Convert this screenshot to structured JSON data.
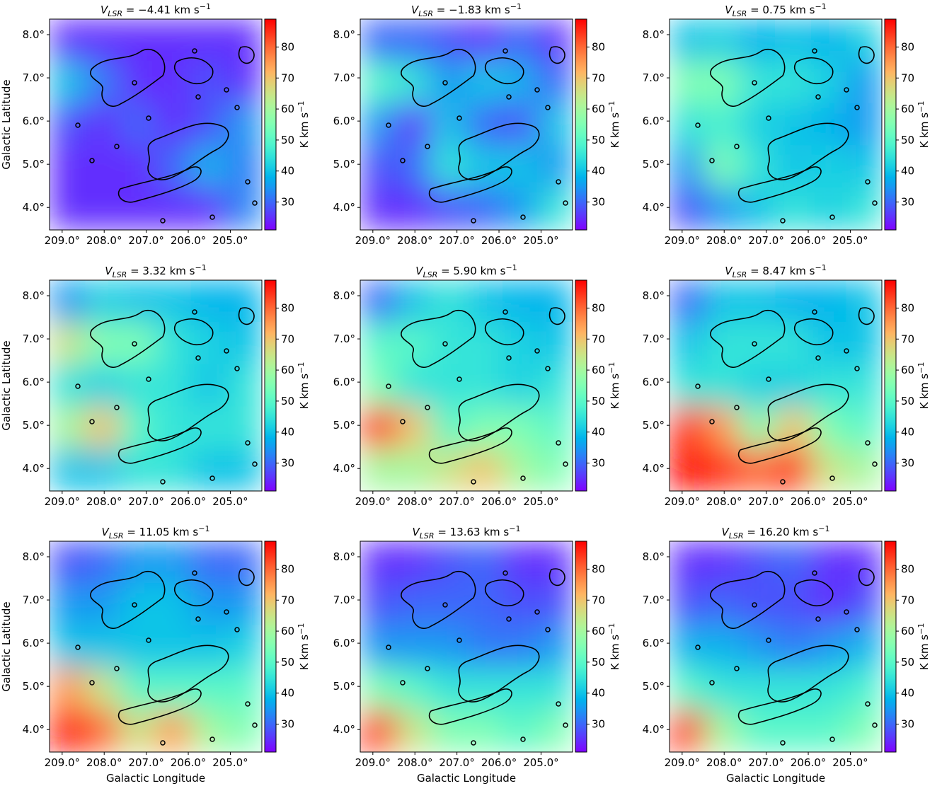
{
  "chart_data": [
    {
      "type": "heatmap",
      "title": [
        "V",
        "LSR",
        " = −4.41 km s",
        "−1"
      ],
      "ylabel": "Galactic Latitude",
      "colormap": "rainbow",
      "colorbar_label": [
        "K km s",
        "−1"
      ],
      "z": [
        [
          25,
          25,
          25,
          25,
          25,
          25
        ],
        [
          40,
          32,
          25,
          25,
          28,
          25
        ],
        [
          28,
          25,
          30,
          25,
          28,
          35
        ],
        [
          25,
          25,
          25,
          30,
          38,
          32
        ],
        [
          25,
          25,
          25,
          25,
          25,
          33
        ]
      ],
      "xlim": [
        209.3,
        204.25
      ],
      "ylim": [
        3.48,
        8.36
      ],
      "clim": [
        21,
        89
      ],
      "xticks": [
        {
          "value": 209,
          "label": "209.0°"
        },
        {
          "value": 208,
          "label": "208.0°"
        },
        {
          "value": 207,
          "label": "207.0°"
        },
        {
          "value": 206,
          "label": "206.0°"
        },
        {
          "value": 205,
          "label": "205.0°"
        }
      ],
      "yticks": [
        {
          "value": 4,
          "label": "4.0°"
        },
        {
          "value": 5,
          "label": "5.0°"
        },
        {
          "value": 6,
          "label": "6.0°"
        },
        {
          "value": 7,
          "label": "7.0°"
        },
        {
          "value": 8,
          "label": "8.0°"
        }
      ],
      "cticks": [
        30,
        40,
        50,
        60,
        70,
        80
      ]
    },
    {
      "type": "heatmap",
      "title": [
        "V",
        "LSR",
        " = −1.83 km s",
        "−1"
      ],
      "colormap": "rainbow",
      "colorbar_label": [
        "K km s",
        "−1"
      ],
      "z": [
        [
          30,
          30,
          28,
          25,
          30,
          25
        ],
        [
          50,
          45,
          35,
          40,
          38,
          30
        ],
        [
          35,
          25,
          40,
          30,
          28,
          40
        ],
        [
          28,
          30,
          45,
          40,
          40,
          35
        ],
        [
          25,
          25,
          28,
          30,
          35,
          45
        ]
      ],
      "xlim": [
        209.3,
        204.25
      ],
      "ylim": [
        3.48,
        8.36
      ],
      "clim": [
        21,
        89
      ],
      "xticks": [
        {
          "value": 209,
          "label": "209.0°"
        },
        {
          "value": 208,
          "label": "208.0°"
        },
        {
          "value": 207,
          "label": "207.0°"
        },
        {
          "value": 206,
          "label": "206.0°"
        },
        {
          "value": 205,
          "label": "205.0°"
        }
      ],
      "yticks": [
        {
          "value": 4,
          "label": "4.0°"
        },
        {
          "value": 5,
          "label": "5.0°"
        },
        {
          "value": 6,
          "label": "6.0°"
        },
        {
          "value": 7,
          "label": "7.0°"
        },
        {
          "value": 8,
          "label": "8.0°"
        }
      ],
      "cticks": [
        30,
        40,
        50,
        60,
        70,
        80
      ]
    },
    {
      "type": "heatmap",
      "title": [
        "V",
        "LSR",
        " = 0.75 km s",
        "−1"
      ],
      "colormap": "rainbow",
      "colorbar_label": [
        "K km s",
        "−1"
      ],
      "z": [
        [
          40,
          42,
          38,
          40,
          38,
          42
        ],
        [
          55,
          55,
          45,
          45,
          42,
          35
        ],
        [
          45,
          48,
          42,
          40,
          38,
          35
        ],
        [
          35,
          55,
          45,
          40,
          42,
          40
        ],
        [
          28,
          35,
          40,
          45,
          42,
          45
        ]
      ],
      "xlim": [
        209.3,
        204.25
      ],
      "ylim": [
        3.48,
        8.36
      ],
      "clim": [
        21,
        89
      ],
      "xticks": [
        {
          "value": 209,
          "label": "209.0°"
        },
        {
          "value": 208,
          "label": "208.0°"
        },
        {
          "value": 207,
          "label": "207.0°"
        },
        {
          "value": 206,
          "label": "206.0°"
        },
        {
          "value": 205,
          "label": "205.0°"
        }
      ],
      "yticks": [
        {
          "value": 4,
          "label": "4.0°"
        },
        {
          "value": 5,
          "label": "5.0°"
        },
        {
          "value": 6,
          "label": "6.0°"
        },
        {
          "value": 7,
          "label": "7.0°"
        },
        {
          "value": 8,
          "label": "8.0°"
        }
      ],
      "cticks": [
        30,
        40,
        50,
        60,
        70,
        80
      ]
    },
    {
      "type": "heatmap",
      "title": [
        "V",
        "LSR",
        " = 3.32 km s",
        "−1"
      ],
      "ylabel": "Galactic Latitude",
      "colormap": "rainbow",
      "colorbar_label": [
        "K km s",
        "−1"
      ],
      "z": [
        [
          35,
          42,
          40,
          40,
          38,
          38
        ],
        [
          65,
          55,
          55,
          45,
          42,
          40
        ],
        [
          45,
          42,
          45,
          45,
          40,
          45
        ],
        [
          60,
          70,
          50,
          45,
          45,
          45
        ],
        [
          40,
          40,
          45,
          45,
          40,
          40
        ]
      ],
      "xlim": [
        209.3,
        204.25
      ],
      "ylim": [
        3.48,
        8.36
      ],
      "clim": [
        21,
        89
      ],
      "xticks": [
        {
          "value": 209,
          "label": "209.0°"
        },
        {
          "value": 208,
          "label": "208.0°"
        },
        {
          "value": 207,
          "label": "207.0°"
        },
        {
          "value": 206,
          "label": "206.0°"
        },
        {
          "value": 205,
          "label": "205.0°"
        }
      ],
      "yticks": [
        {
          "value": 4,
          "label": "4.0°"
        },
        {
          "value": 5,
          "label": "5.0°"
        },
        {
          "value": 6,
          "label": "6.0°"
        },
        {
          "value": 7,
          "label": "7.0°"
        },
        {
          "value": 8,
          "label": "8.0°"
        }
      ],
      "cticks": [
        30,
        40,
        50,
        60,
        70,
        80
      ]
    },
    {
      "type": "heatmap",
      "title": [
        "V",
        "LSR",
        " = 5.90 km s",
        "−1"
      ],
      "colormap": "rainbow",
      "colorbar_label": [
        "K km s",
        "−1"
      ],
      "z": [
        [
          30,
          40,
          45,
          40,
          38,
          38
        ],
        [
          50,
          50,
          45,
          45,
          42,
          40
        ],
        [
          55,
          45,
          45,
          45,
          42,
          45
        ],
        [
          85,
          70,
          50,
          55,
          55,
          50
        ],
        [
          60,
          60,
          65,
          70,
          60,
          55
        ]
      ],
      "xlim": [
        209.3,
        204.25
      ],
      "ylim": [
        3.48,
        8.36
      ],
      "clim": [
        21,
        89
      ],
      "xticks": [
        {
          "value": 209,
          "label": "209.0°"
        },
        {
          "value": 208,
          "label": "208.0°"
        },
        {
          "value": 207,
          "label": "207.0°"
        },
        {
          "value": 206,
          "label": "206.0°"
        },
        {
          "value": 205,
          "label": "205.0°"
        }
      ],
      "yticks": [
        {
          "value": 4,
          "label": "4.0°"
        },
        {
          "value": 5,
          "label": "5.0°"
        },
        {
          "value": 6,
          "label": "6.0°"
        },
        {
          "value": 7,
          "label": "7.0°"
        },
        {
          "value": 8,
          "label": "8.0°"
        }
      ],
      "cticks": [
        30,
        40,
        50,
        60,
        70,
        80
      ]
    },
    {
      "type": "heatmap",
      "title": [
        "V",
        "LSR",
        " = 8.47 km s",
        "−1"
      ],
      "colormap": "rainbow",
      "colorbar_label": [
        "K km s",
        "−1"
      ],
      "z": [
        [
          30,
          40,
          40,
          38,
          38,
          40
        ],
        [
          40,
          45,
          45,
          45,
          40,
          40
        ],
        [
          45,
          45,
          42,
          42,
          45,
          45
        ],
        [
          85,
          75,
          55,
          70,
          55,
          50
        ],
        [
          89,
          85,
          80,
          85,
          65,
          60
        ]
      ],
      "xlim": [
        209.3,
        204.25
      ],
      "ylim": [
        3.48,
        8.36
      ],
      "clim": [
        21,
        89
      ],
      "xticks": [
        {
          "value": 209,
          "label": "209.0°"
        },
        {
          "value": 208,
          "label": "208.0°"
        },
        {
          "value": 207,
          "label": "207.0°"
        },
        {
          "value": 206,
          "label": "206.0°"
        },
        {
          "value": 205,
          "label": "205.0°"
        }
      ],
      "yticks": [
        {
          "value": 4,
          "label": "4.0°"
        },
        {
          "value": 5,
          "label": "5.0°"
        },
        {
          "value": 6,
          "label": "6.0°"
        },
        {
          "value": 7,
          "label": "7.0°"
        },
        {
          "value": 8,
          "label": "8.0°"
        }
      ],
      "cticks": [
        30,
        40,
        50,
        60,
        70,
        80
      ]
    },
    {
      "type": "heatmap",
      "title": [
        "V",
        "LSR",
        " = 11.05 km s",
        "−1"
      ],
      "ylabel": "Galactic Latitude",
      "xlabel": "Galactic Longitude",
      "colormap": "rainbow",
      "colorbar_label": [
        "K km s",
        "−1"
      ],
      "z": [
        [
          28,
          30,
          35,
          35,
          30,
          30
        ],
        [
          35,
          35,
          40,
          40,
          35,
          35
        ],
        [
          40,
          40,
          40,
          40,
          40,
          42
        ],
        [
          75,
          65,
          50,
          50,
          50,
          50
        ],
        [
          89,
          80,
          65,
          75,
          60,
          55
        ]
      ],
      "xlim": [
        209.3,
        204.25
      ],
      "ylim": [
        3.48,
        8.36
      ],
      "clim": [
        21,
        89
      ],
      "xticks": [
        {
          "value": 209,
          "label": "209.0°"
        },
        {
          "value": 208,
          "label": "208.0°"
        },
        {
          "value": 207,
          "label": "207.0°"
        },
        {
          "value": 206,
          "label": "206.0°"
        },
        {
          "value": 205,
          "label": "205.0°"
        }
      ],
      "yticks": [
        {
          "value": 4,
          "label": "4.0°"
        },
        {
          "value": 5,
          "label": "5.0°"
        },
        {
          "value": 6,
          "label": "6.0°"
        },
        {
          "value": 7,
          "label": "7.0°"
        },
        {
          "value": 8,
          "label": "8.0°"
        }
      ],
      "cticks": [
        30,
        40,
        50,
        60,
        70,
        80
      ]
    },
    {
      "type": "heatmap",
      "title": [
        "V",
        "LSR",
        " = 13.63 km s",
        "−1"
      ],
      "xlabel": "Galactic Longitude",
      "colormap": "rainbow",
      "colorbar_label": [
        "K km s",
        "−1"
      ],
      "z": [
        [
          25,
          25,
          28,
          30,
          25,
          25
        ],
        [
          28,
          30,
          30,
          30,
          28,
          28
        ],
        [
          35,
          35,
          35,
          32,
          32,
          35
        ],
        [
          55,
          50,
          45,
          45,
          45,
          45
        ],
        [
          85,
          65,
          55,
          55,
          50,
          55
        ]
      ],
      "xlim": [
        209.3,
        204.25
      ],
      "ylim": [
        3.48,
        8.36
      ],
      "clim": [
        21,
        89
      ],
      "xticks": [
        {
          "value": 209,
          "label": "209.0°"
        },
        {
          "value": 208,
          "label": "208.0°"
        },
        {
          "value": 207,
          "label": "207.0°"
        },
        {
          "value": 206,
          "label": "206.0°"
        },
        {
          "value": 205,
          "label": "205.0°"
        }
      ],
      "yticks": [
        {
          "value": 4,
          "label": "4.0°"
        },
        {
          "value": 5,
          "label": "5.0°"
        },
        {
          "value": 6,
          "label": "6.0°"
        },
        {
          "value": 7,
          "label": "7.0°"
        },
        {
          "value": 8,
          "label": "8.0°"
        }
      ],
      "cticks": [
        30,
        40,
        50,
        60,
        70,
        80
      ]
    },
    {
      "type": "heatmap",
      "title": [
        "V",
        "LSR",
        " = 16.20 km s",
        "−1"
      ],
      "xlabel": "Galactic Longitude",
      "colormap": "rainbow",
      "colorbar_label": [
        "K km s",
        "−1"
      ],
      "z": [
        [
          25,
          25,
          28,
          30,
          25,
          25
        ],
        [
          28,
          30,
          28,
          28,
          25,
          28
        ],
        [
          38,
          38,
          35,
          32,
          35,
          38
        ],
        [
          50,
          45,
          45,
          45,
          45,
          48
        ],
        [
          85,
          60,
          50,
          50,
          50,
          55
        ]
      ],
      "xlim": [
        209.3,
        204.25
      ],
      "ylim": [
        3.48,
        8.36
      ],
      "clim": [
        21,
        89
      ],
      "xticks": [
        {
          "value": 209,
          "label": "209.0°"
        },
        {
          "value": 208,
          "label": "208.0°"
        },
        {
          "value": 207,
          "label": "207.0°"
        },
        {
          "value": 206,
          "label": "206.0°"
        },
        {
          "value": 205,
          "label": "205.0°"
        }
      ],
      "yticks": [
        {
          "value": 4,
          "label": "4.0°"
        },
        {
          "value": 5,
          "label": "5.0°"
        },
        {
          "value": 6,
          "label": "6.0°"
        },
        {
          "value": 7,
          "label": "7.0°"
        },
        {
          "value": 8,
          "label": "8.0°"
        }
      ],
      "cticks": [
        30,
        40,
        50,
        60,
        70,
        80
      ]
    }
  ]
}
